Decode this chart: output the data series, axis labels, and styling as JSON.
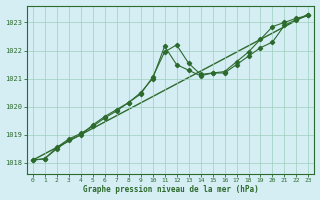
{
  "title": "Graphe pression niveau de la mer (hPa)",
  "background_color": "#d4eef4",
  "grid_color": "#9ecfbc",
  "line_color": "#2d6a2d",
  "xlim": [
    -0.5,
    23.5
  ],
  "ylim": [
    1017.6,
    1023.6
  ],
  "yticks": [
    1018,
    1019,
    1020,
    1021,
    1022,
    1023
  ],
  "xticks": [
    0,
    1,
    2,
    3,
    4,
    5,
    6,
    7,
    8,
    9,
    10,
    11,
    12,
    13,
    14,
    15,
    16,
    17,
    18,
    19,
    20,
    21,
    22,
    23
  ],
  "series1_x": [
    0,
    1,
    2,
    3,
    4,
    5,
    6,
    7,
    8,
    9,
    10,
    11,
    12,
    13,
    14,
    15,
    16,
    17,
    18,
    19,
    20,
    21,
    22,
    23
  ],
  "series1_y": [
    1018.1,
    1018.15,
    1018.5,
    1018.8,
    1019.0,
    1019.35,
    1019.65,
    1019.9,
    1020.15,
    1020.45,
    1021.05,
    1021.95,
    1022.2,
    1021.55,
    1021.15,
    1021.2,
    1021.25,
    1021.6,
    1021.95,
    1022.4,
    1022.85,
    1023.0,
    1023.15,
    1023.25
  ],
  "series2_x": [
    0,
    1,
    2,
    3,
    4,
    5,
    6,
    7,
    8,
    9,
    10,
    11,
    12,
    13,
    14,
    15,
    16,
    17,
    18,
    19,
    20,
    21,
    22,
    23
  ],
  "series2_y": [
    1018.1,
    1018.15,
    1018.55,
    1018.85,
    1019.05,
    1019.3,
    1019.6,
    1019.85,
    1020.15,
    1020.5,
    1021.0,
    1022.15,
    1021.5,
    1021.3,
    1021.1,
    1021.2,
    1021.2,
    1021.5,
    1021.8,
    1022.1,
    1022.3,
    1022.9,
    1023.1,
    1023.25
  ],
  "series3_x": [
    0,
    23
  ],
  "series3_y": [
    1018.1,
    1023.3
  ]
}
